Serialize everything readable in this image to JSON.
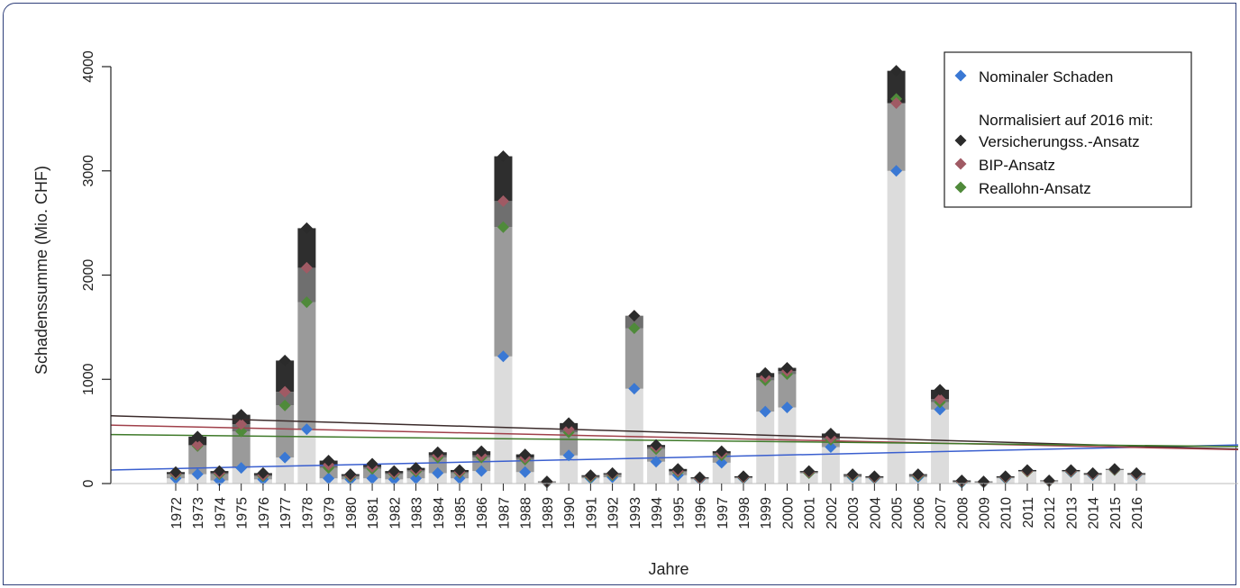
{
  "chart_data": {
    "type": "bar",
    "title": "",
    "xlabel": "Jahre",
    "ylabel": "Schadenssumme (Mio. CHF)",
    "ylim": [
      0,
      4000
    ],
    "yticks": [
      0,
      1000,
      2000,
      3000,
      4000
    ],
    "categories": [
      "1972",
      "1973",
      "1974",
      "1975",
      "1976",
      "1977",
      "1978",
      "1979",
      "1980",
      "1981",
      "1982",
      "1983",
      "1984",
      "1985",
      "1986",
      "1987",
      "1988",
      "1989",
      "1990",
      "1991",
      "1992",
      "1993",
      "1994",
      "1995",
      "1996",
      "1997",
      "1998",
      "1999",
      "2000",
      "2001",
      "2002",
      "2003",
      "2004",
      "2005",
      "2006",
      "2007",
      "2008",
      "2009",
      "2010",
      "2011",
      "2012",
      "2013",
      "2014",
      "2015",
      "2016"
    ],
    "series": [
      {
        "name": "Nominaler Schaden",
        "marker": "diamond",
        "color": "#3a78d4",
        "values": [
          50,
          90,
          30,
          150,
          40,
          250,
          520,
          50,
          40,
          50,
          40,
          50,
          100,
          50,
          120,
          1220,
          110,
          10,
          270,
          50,
          60,
          910,
          210,
          80,
          40,
          200,
          50,
          690,
          730,
          100,
          350,
          60,
          50,
          3000,
          60,
          710,
          10,
          10,
          50,
          120,
          20,
          110,
          80,
          130,
          80
        ]
      },
      {
        "name": "Versicherungss.-Ansatz",
        "marker": "diamond",
        "color": "#2b2b2b",
        "values": [
          110,
          450,
          120,
          660,
          100,
          1180,
          2450,
          220,
          90,
          190,
          120,
          150,
          300,
          130,
          310,
          3140,
          280,
          20,
          580,
          80,
          100,
          1610,
          370,
          140,
          60,
          310,
          70,
          1060,
          1110,
          120,
          480,
          90,
          70,
          3960,
          90,
          900,
          30,
          20,
          70,
          130,
          30,
          130,
          100,
          140,
          100
        ]
      },
      {
        "name": "BIP-Ansatz",
        "marker": "diamond",
        "color": "#a05a64",
        "values": [
          95,
          370,
          100,
          570,
          80,
          880,
          2070,
          180,
          75,
          160,
          100,
          130,
          270,
          110,
          270,
          2710,
          250,
          15,
          520,
          70,
          90,
          1610,
          350,
          120,
          50,
          290,
          60,
          1020,
          1080,
          110,
          440,
          80,
          60,
          3650,
          80,
          810,
          20,
          15,
          60,
          120,
          25,
          120,
          90,
          135,
          90
        ]
      },
      {
        "name": "Reallohn-Ansatz",
        "marker": "diamond",
        "color": "#4f8a3a",
        "values": [
          85,
          360,
          90,
          500,
          70,
          750,
          1740,
          150,
          65,
          140,
          90,
          115,
          250,
          100,
          250,
          2460,
          230,
          12,
          490,
          60,
          80,
          1490,
          330,
          110,
          45,
          270,
          55,
          990,
          1050,
          100,
          420,
          70,
          55,
          3690,
          70,
          780,
          15,
          12,
          55,
          115,
          22,
          115,
          85,
          130,
          85
        ]
      }
    ],
    "trend_lines": [
      {
        "series": "Nominaler Schaden",
        "color": "#3a5fcf",
        "from": 130,
        "to": 370
      },
      {
        "series": "Versicherungss.-Ansatz",
        "color": "#3b2b2b",
        "from": 650,
        "to": 330
      },
      {
        "series": "BIP-Ansatz",
        "color": "#a0404a",
        "from": 560,
        "to": 325
      },
      {
        "series": "Reallohn-Ansatz",
        "color": "#3f7a2a",
        "from": 470,
        "to": 355
      }
    ],
    "legend": {
      "placement": "top-right",
      "nominal_label": "Nominaler Schaden",
      "heading": "Normalisiert auf 2016 mit:",
      "entries": [
        "Versicherungss.-Ansatz",
        "BIP-Ansatz",
        "Reallohn-Ansatz"
      ]
    }
  }
}
